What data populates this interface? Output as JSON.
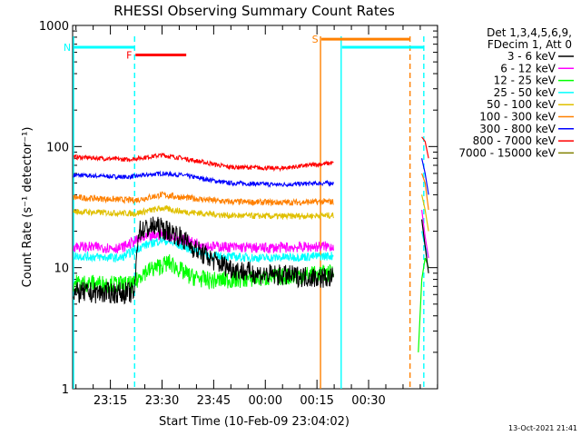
{
  "chart_data": {
    "type": "line",
    "title": "RHESSI Observing Summary Count Rates",
    "xlabel": "Start Time (10-Feb-09 23:04:02)",
    "ylabel": "Count Rate (s⁻¹ detector⁻¹)",
    "y_scale": "log",
    "ylim": [
      1,
      1000
    ],
    "xlim_minutes_after_start": [
      0,
      106
    ],
    "x_ticks": [
      {
        "label": "23:15",
        "minute": 10.97
      },
      {
        "label": "23:30",
        "minute": 25.97
      },
      {
        "label": "23:45",
        "minute": 40.97
      },
      {
        "label": "00:00",
        "minute": 55.97
      },
      {
        "label": "00:15",
        "minute": 70.97
      },
      {
        "label": "00:30",
        "minute": 85.97
      }
    ],
    "y_ticks": [
      {
        "label": "1",
        "value": 1
      },
      {
        "label": "10",
        "value": 10
      },
      {
        "label": "100",
        "value": 100
      },
      {
        "label": "1000",
        "value": 1000
      }
    ],
    "legend_header": [
      "Det 1,3,4,5,6,9,",
      "FDecim 1, Att 0"
    ],
    "legend_position": "right",
    "series": [
      {
        "name": "3 - 6 keV",
        "color": "#000000",
        "profile": [
          [
            0,
            6.2
          ],
          [
            18,
            6.2
          ],
          [
            19,
            20
          ],
          [
            24,
            22
          ],
          [
            30,
            19
          ],
          [
            36,
            14
          ],
          [
            42,
            11
          ],
          [
            48,
            9.5
          ],
          [
            55,
            8.8
          ],
          [
            65,
            8.5
          ],
          [
            75,
            8.2
          ]
        ],
        "noise": 0.12,
        "tail": [
          [
            101,
            25
          ],
          [
            102,
            15
          ],
          [
            103,
            9
          ]
        ]
      },
      {
        "name": "6 - 12 keV",
        "color": "#ff00ff",
        "profile": [
          [
            0,
            15
          ],
          [
            14,
            14.5
          ],
          [
            19,
            17
          ],
          [
            26,
            19
          ],
          [
            32,
            17
          ],
          [
            40,
            15
          ],
          [
            55,
            14.5
          ],
          [
            75,
            15
          ]
        ],
        "noise": 0.06,
        "tail": [
          [
            101,
            30
          ],
          [
            102,
            18
          ],
          [
            103,
            12
          ]
        ]
      },
      {
        "name": "12 - 25 keV",
        "color": "#00ff00",
        "profile": [
          [
            0,
            7.5
          ],
          [
            18,
            7.2
          ],
          [
            20,
            9
          ],
          [
            28,
            11
          ],
          [
            34,
            8.5
          ],
          [
            40,
            7.8
          ],
          [
            55,
            8.2
          ],
          [
            75,
            9
          ]
        ],
        "noise": 0.1,
        "tail": [
          [
            100,
            2
          ],
          [
            101,
            8
          ],
          [
            102,
            12
          ],
          [
            103,
            10
          ]
        ]
      },
      {
        "name": "25 - 50 keV",
        "color": "#00ffff",
        "profile": [
          [
            0,
            12.5
          ],
          [
            14,
            12
          ],
          [
            20,
            15
          ],
          [
            26,
            17
          ],
          [
            32,
            15
          ],
          [
            40,
            12.5
          ],
          [
            55,
            12
          ],
          [
            75,
            12.5
          ]
        ],
        "noise": 0.05,
        "tail": [
          [
            101,
            20
          ],
          [
            102,
            15
          ],
          [
            103,
            12
          ]
        ]
      },
      {
        "name": "50 - 100 keV",
        "color": "#e0c000",
        "profile": [
          [
            0,
            29
          ],
          [
            18,
            28
          ],
          [
            26,
            31
          ],
          [
            32,
            29
          ],
          [
            45,
            27
          ],
          [
            60,
            26.5
          ],
          [
            75,
            27
          ]
        ],
        "noise": 0.035,
        "tail": [
          [
            101,
            40
          ],
          [
            102,
            30
          ],
          [
            103,
            20
          ]
        ]
      },
      {
        "name": "100 - 300 keV",
        "color": "#ff8000",
        "profile": [
          [
            0,
            38
          ],
          [
            18,
            36
          ],
          [
            26,
            40
          ],
          [
            32,
            38
          ],
          [
            45,
            35
          ],
          [
            60,
            34.5
          ],
          [
            75,
            35
          ]
        ],
        "noise": 0.035,
        "tail": [
          [
            101,
            60
          ],
          [
            102,
            50
          ],
          [
            103,
            30
          ]
        ]
      },
      {
        "name": "300 - 800 keV",
        "color": "#0000ff",
        "profile": [
          [
            0,
            58
          ],
          [
            16,
            56
          ],
          [
            26,
            60
          ],
          [
            32,
            58
          ],
          [
            45,
            50
          ],
          [
            60,
            48.5
          ],
          [
            75,
            50
          ]
        ],
        "noise": 0.025,
        "tail": [
          [
            101,
            80
          ],
          [
            102,
            60
          ],
          [
            103,
            40
          ]
        ]
      },
      {
        "name": "800 - 7000 keV",
        "color": "#ff0000",
        "profile": [
          [
            0,
            82
          ],
          [
            16,
            78
          ],
          [
            26,
            85
          ],
          [
            32,
            80
          ],
          [
            45,
            68
          ],
          [
            60,
            66
          ],
          [
            75,
            73
          ]
        ],
        "noise": 0.025,
        "tail": [
          [
            101,
            120
          ],
          [
            102,
            110
          ],
          [
            103,
            80
          ]
        ]
      },
      {
        "name": "7000 - 15000 keV",
        "color": "#808000",
        "profile": [],
        "noise": 0,
        "tail": []
      }
    ],
    "flags": [
      {
        "label": "N",
        "color": "#00ffff",
        "start_minute": 0,
        "end_minute": 18,
        "level": 660
      },
      {
        "label": "F",
        "color": "#ff0000",
        "start_minute": 18,
        "end_minute": 33,
        "level": 570
      },
      {
        "label": "S",
        "color": "#ff8000",
        "start_minute": 72,
        "end_minute": 98,
        "level": 770
      },
      {
        "label": "",
        "color": "#00ffff",
        "start_minute": 78,
        "end_minute": 102,
        "level": 660
      }
    ],
    "markers": [
      {
        "color": "#00ffff",
        "minute": 0,
        "style": "solid"
      },
      {
        "color": "#00ffff",
        "minute": 18,
        "style": "dashed"
      },
      {
        "color": "#ff8000",
        "minute": 72,
        "style": "solid"
      },
      {
        "color": "#00ffff",
        "minute": 78,
        "style": "solid"
      },
      {
        "color": "#ff8000",
        "minute": 98,
        "style": "dashed"
      },
      {
        "color": "#00ffff",
        "minute": 102,
        "style": "dashed"
      }
    ],
    "gap_minutes": [
      76,
      100
    ],
    "timestamp": "13-Oct-2021 21:41"
  }
}
